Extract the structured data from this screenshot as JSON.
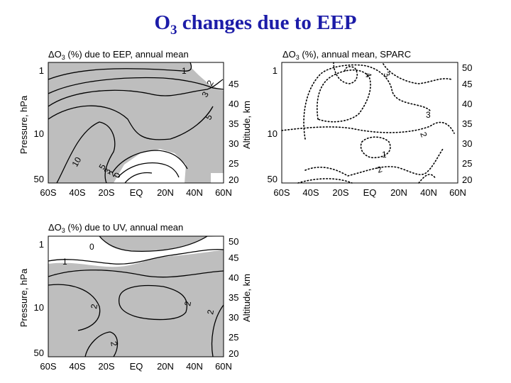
{
  "slide": {
    "title_main": "O",
    "title_sub": "3",
    "title_rest": " changes due to EEP"
  },
  "chart_data": [
    {
      "type": "heatmap",
      "title_prefix": "ΔO",
      "title_sub": "3",
      "title_rest": " (%) due to EEP, annual mean",
      "x_ticks": [
        "60S",
        "40S",
        "20S",
        "EQ",
        "20N",
        "40N",
        "60N"
      ],
      "x_values": [
        -60,
        -40,
        -20,
        0,
        20,
        40,
        60
      ],
      "xlim": [
        -60,
        60
      ],
      "ylabel": "Pressure, hPa",
      "y_ticks": [
        "1",
        "10",
        "50"
      ],
      "y_ticks_values": [
        1,
        10,
        50
      ],
      "ylim": [
        50,
        0.7
      ],
      "y_scale": "log",
      "y2label": "Altitude, km",
      "y2_ticks": [
        "45",
        "40",
        "35",
        "30",
        "25",
        "20"
      ],
      "y2_ticks_values": [
        45,
        40,
        35,
        30,
        25,
        20
      ],
      "contour_labels": [
        "1",
        "2",
        "3",
        "5",
        "10",
        "5",
        "3",
        "2",
        "0"
      ],
      "shading": "positive values shaded grey"
    },
    {
      "type": "heatmap",
      "title_prefix": "ΔO",
      "title_sub": "3",
      "title_rest": " (%), annual mean, SPARC",
      "x_ticks": [
        "60S",
        "40S",
        "20S",
        "EQ",
        "20N",
        "40N",
        "60N"
      ],
      "x_values": [
        -60,
        -40,
        -20,
        0,
        20,
        40,
        60
      ],
      "xlim": [
        -60,
        60
      ],
      "y_ticks": [
        "1",
        "10",
        "50"
      ],
      "y_ticks_values": [
        1,
        10,
        50
      ],
      "ylim": [
        50,
        0.7
      ],
      "y_scale": "log",
      "y2_ticks": [
        "50",
        "45",
        "40",
        "35",
        "30",
        "25",
        "20"
      ],
      "y2_ticks_values": [
        50,
        45,
        40,
        35,
        30,
        25,
        20
      ],
      "contour_labels": [
        "4",
        "3",
        "3",
        "2",
        "1",
        "2"
      ],
      "shading": "none, dotted contours"
    },
    {
      "type": "heatmap",
      "title_prefix": "ΔO",
      "title_sub": "3",
      "title_rest": " (%) due to UV, annual mean",
      "x_ticks": [
        "60S",
        "40S",
        "20S",
        "EQ",
        "20N",
        "40N",
        "60N"
      ],
      "x_values": [
        -60,
        -40,
        -20,
        0,
        20,
        40,
        60
      ],
      "xlim": [
        -60,
        60
      ],
      "ylabel": "Pressure, hPa",
      "y_ticks": [
        "1",
        "10",
        "50"
      ],
      "y_ticks_values": [
        1,
        10,
        50
      ],
      "ylim": [
        50,
        0.7
      ],
      "y_scale": "log",
      "y2label": "Altitude, km",
      "y2_ticks": [
        "50",
        "45",
        "40",
        "35",
        "30",
        "25",
        "20"
      ],
      "y2_ticks_values": [
        50,
        45,
        40,
        35,
        30,
        25,
        20
      ],
      "contour_labels": [
        "0",
        "1",
        "2",
        "2",
        "2",
        "2"
      ],
      "shading": "values ≥ 1 shaded grey"
    }
  ]
}
